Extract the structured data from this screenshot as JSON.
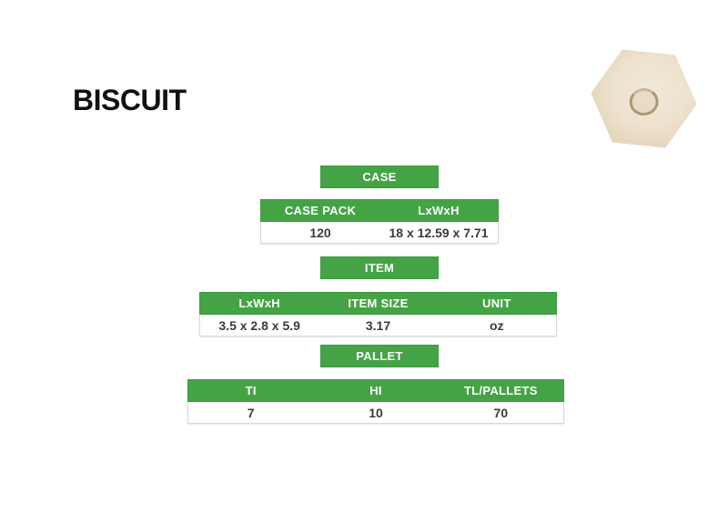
{
  "title": "BISCUIT",
  "colors": {
    "green": "#44A445",
    "green_border": "#3B9A3E",
    "header_text": "#FFFFFF",
    "value_text": "#3B3B3B",
    "title_text": "#111111",
    "row_border": "#D9D9D9",
    "biscuit_fill": "#EDE2CE",
    "biscuit_edge": "#DECFB3",
    "biscuit_ring": "#AC9776"
  },
  "product_image": {
    "description": "hexagonal cream biscuit with circular ring imprint in center"
  },
  "sections": [
    {
      "label": "CASE",
      "columns": [
        "CASE PACK",
        "LxWxH"
      ],
      "values": [
        "120",
        "18 x 12.59 x 7.71"
      ]
    },
    {
      "label": "ITEM",
      "columns": [
        "LxWxH",
        "ITEM SIZE",
        "UNIT"
      ],
      "values": [
        "3.5 x 2.8 x 5.9",
        "3.17",
        "oz"
      ]
    },
    {
      "label": "PALLET",
      "columns": [
        "TI",
        "HI",
        "TL/PALLETS"
      ],
      "values": [
        "7",
        "10",
        "70"
      ]
    }
  ]
}
